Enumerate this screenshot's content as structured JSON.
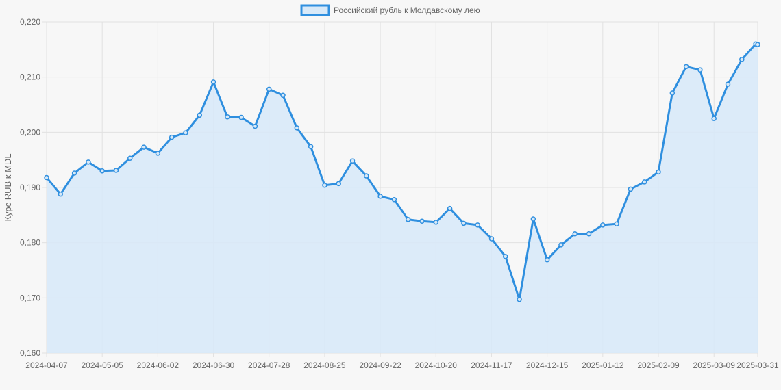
{
  "chart_data": {
    "type": "line",
    "legend": {
      "label": "Российский рубль к Молдавскому лею",
      "position": "top"
    },
    "ylabel": "Курс RUB к MDL",
    "ylim": [
      0.16,
      0.22
    ],
    "y_ticks": [
      "0,160",
      "0,170",
      "0,180",
      "0,190",
      "0,200",
      "0,210",
      "0,220"
    ],
    "x_ticks": [
      "2024-04-07",
      "2024-05-05",
      "2024-06-02",
      "2024-06-30",
      "2024-07-28",
      "2024-08-25",
      "2024-09-22",
      "2024-10-20",
      "2024-11-17",
      "2024-12-15",
      "2025-01-12",
      "2025-02-09",
      "2025-03-09",
      "2025-03-31"
    ],
    "grid": true,
    "colors": {
      "line": "#2f8fdf",
      "fill": "#d8e9f8",
      "grid": "#e1e1e1",
      "text": "#666666"
    },
    "series": [
      {
        "name": "Российский рубль к Молдавскому лею",
        "points": [
          [
            "2024-04-07",
            0.1918
          ],
          [
            "2024-04-14",
            0.1888
          ],
          [
            "2024-04-21",
            0.1926
          ],
          [
            "2024-04-28",
            0.1946
          ],
          [
            "2024-05-05",
            0.193
          ],
          [
            "2024-05-12",
            0.1931
          ],
          [
            "2024-05-19",
            0.1953
          ],
          [
            "2024-05-26",
            0.1973
          ],
          [
            "2024-06-02",
            0.1962
          ],
          [
            "2024-06-09",
            0.1991
          ],
          [
            "2024-06-16",
            0.1999
          ],
          [
            "2024-06-23",
            0.2031
          ],
          [
            "2024-06-30",
            0.2091
          ],
          [
            "2024-07-07",
            0.2028
          ],
          [
            "2024-07-14",
            0.2027
          ],
          [
            "2024-07-21",
            0.2011
          ],
          [
            "2024-07-28",
            0.2078
          ],
          [
            "2024-08-04",
            0.2067
          ],
          [
            "2024-08-11",
            0.2008
          ],
          [
            "2024-08-18",
            0.1974
          ],
          [
            "2024-08-25",
            0.1904
          ],
          [
            "2024-09-01",
            0.1907
          ],
          [
            "2024-09-08",
            0.1948
          ],
          [
            "2024-09-15",
            0.1921
          ],
          [
            "2024-09-22",
            0.1884
          ],
          [
            "2024-09-29",
            0.1878
          ],
          [
            "2024-10-06",
            0.1842
          ],
          [
            "2024-10-13",
            0.1839
          ],
          [
            "2024-10-20",
            0.1837
          ],
          [
            "2024-10-27",
            0.1862
          ],
          [
            "2024-11-03",
            0.1835
          ],
          [
            "2024-11-10",
            0.1832
          ],
          [
            "2024-11-17",
            0.1807
          ],
          [
            "2024-11-24",
            0.1775
          ],
          [
            "2024-12-01",
            0.1697
          ],
          [
            "2024-12-08",
            0.1843
          ],
          [
            "2024-12-15",
            0.1769
          ],
          [
            "2024-12-22",
            0.1796
          ],
          [
            "2024-12-29",
            0.1816
          ],
          [
            "2025-01-05",
            0.1816
          ],
          [
            "2025-01-12",
            0.1832
          ],
          [
            "2025-01-19",
            0.1834
          ],
          [
            "2025-01-26",
            0.1897
          ],
          [
            "2025-02-02",
            0.191
          ],
          [
            "2025-02-09",
            0.1928
          ],
          [
            "2025-02-16",
            0.2071
          ],
          [
            "2025-02-23",
            0.2119
          ],
          [
            "2025-03-02",
            0.2113
          ],
          [
            "2025-03-09",
            0.2025
          ],
          [
            "2025-03-16",
            0.2087
          ],
          [
            "2025-03-23",
            0.2132
          ],
          [
            "2025-03-30",
            0.216
          ],
          [
            "2025-03-31",
            0.2159
          ]
        ]
      }
    ]
  }
}
